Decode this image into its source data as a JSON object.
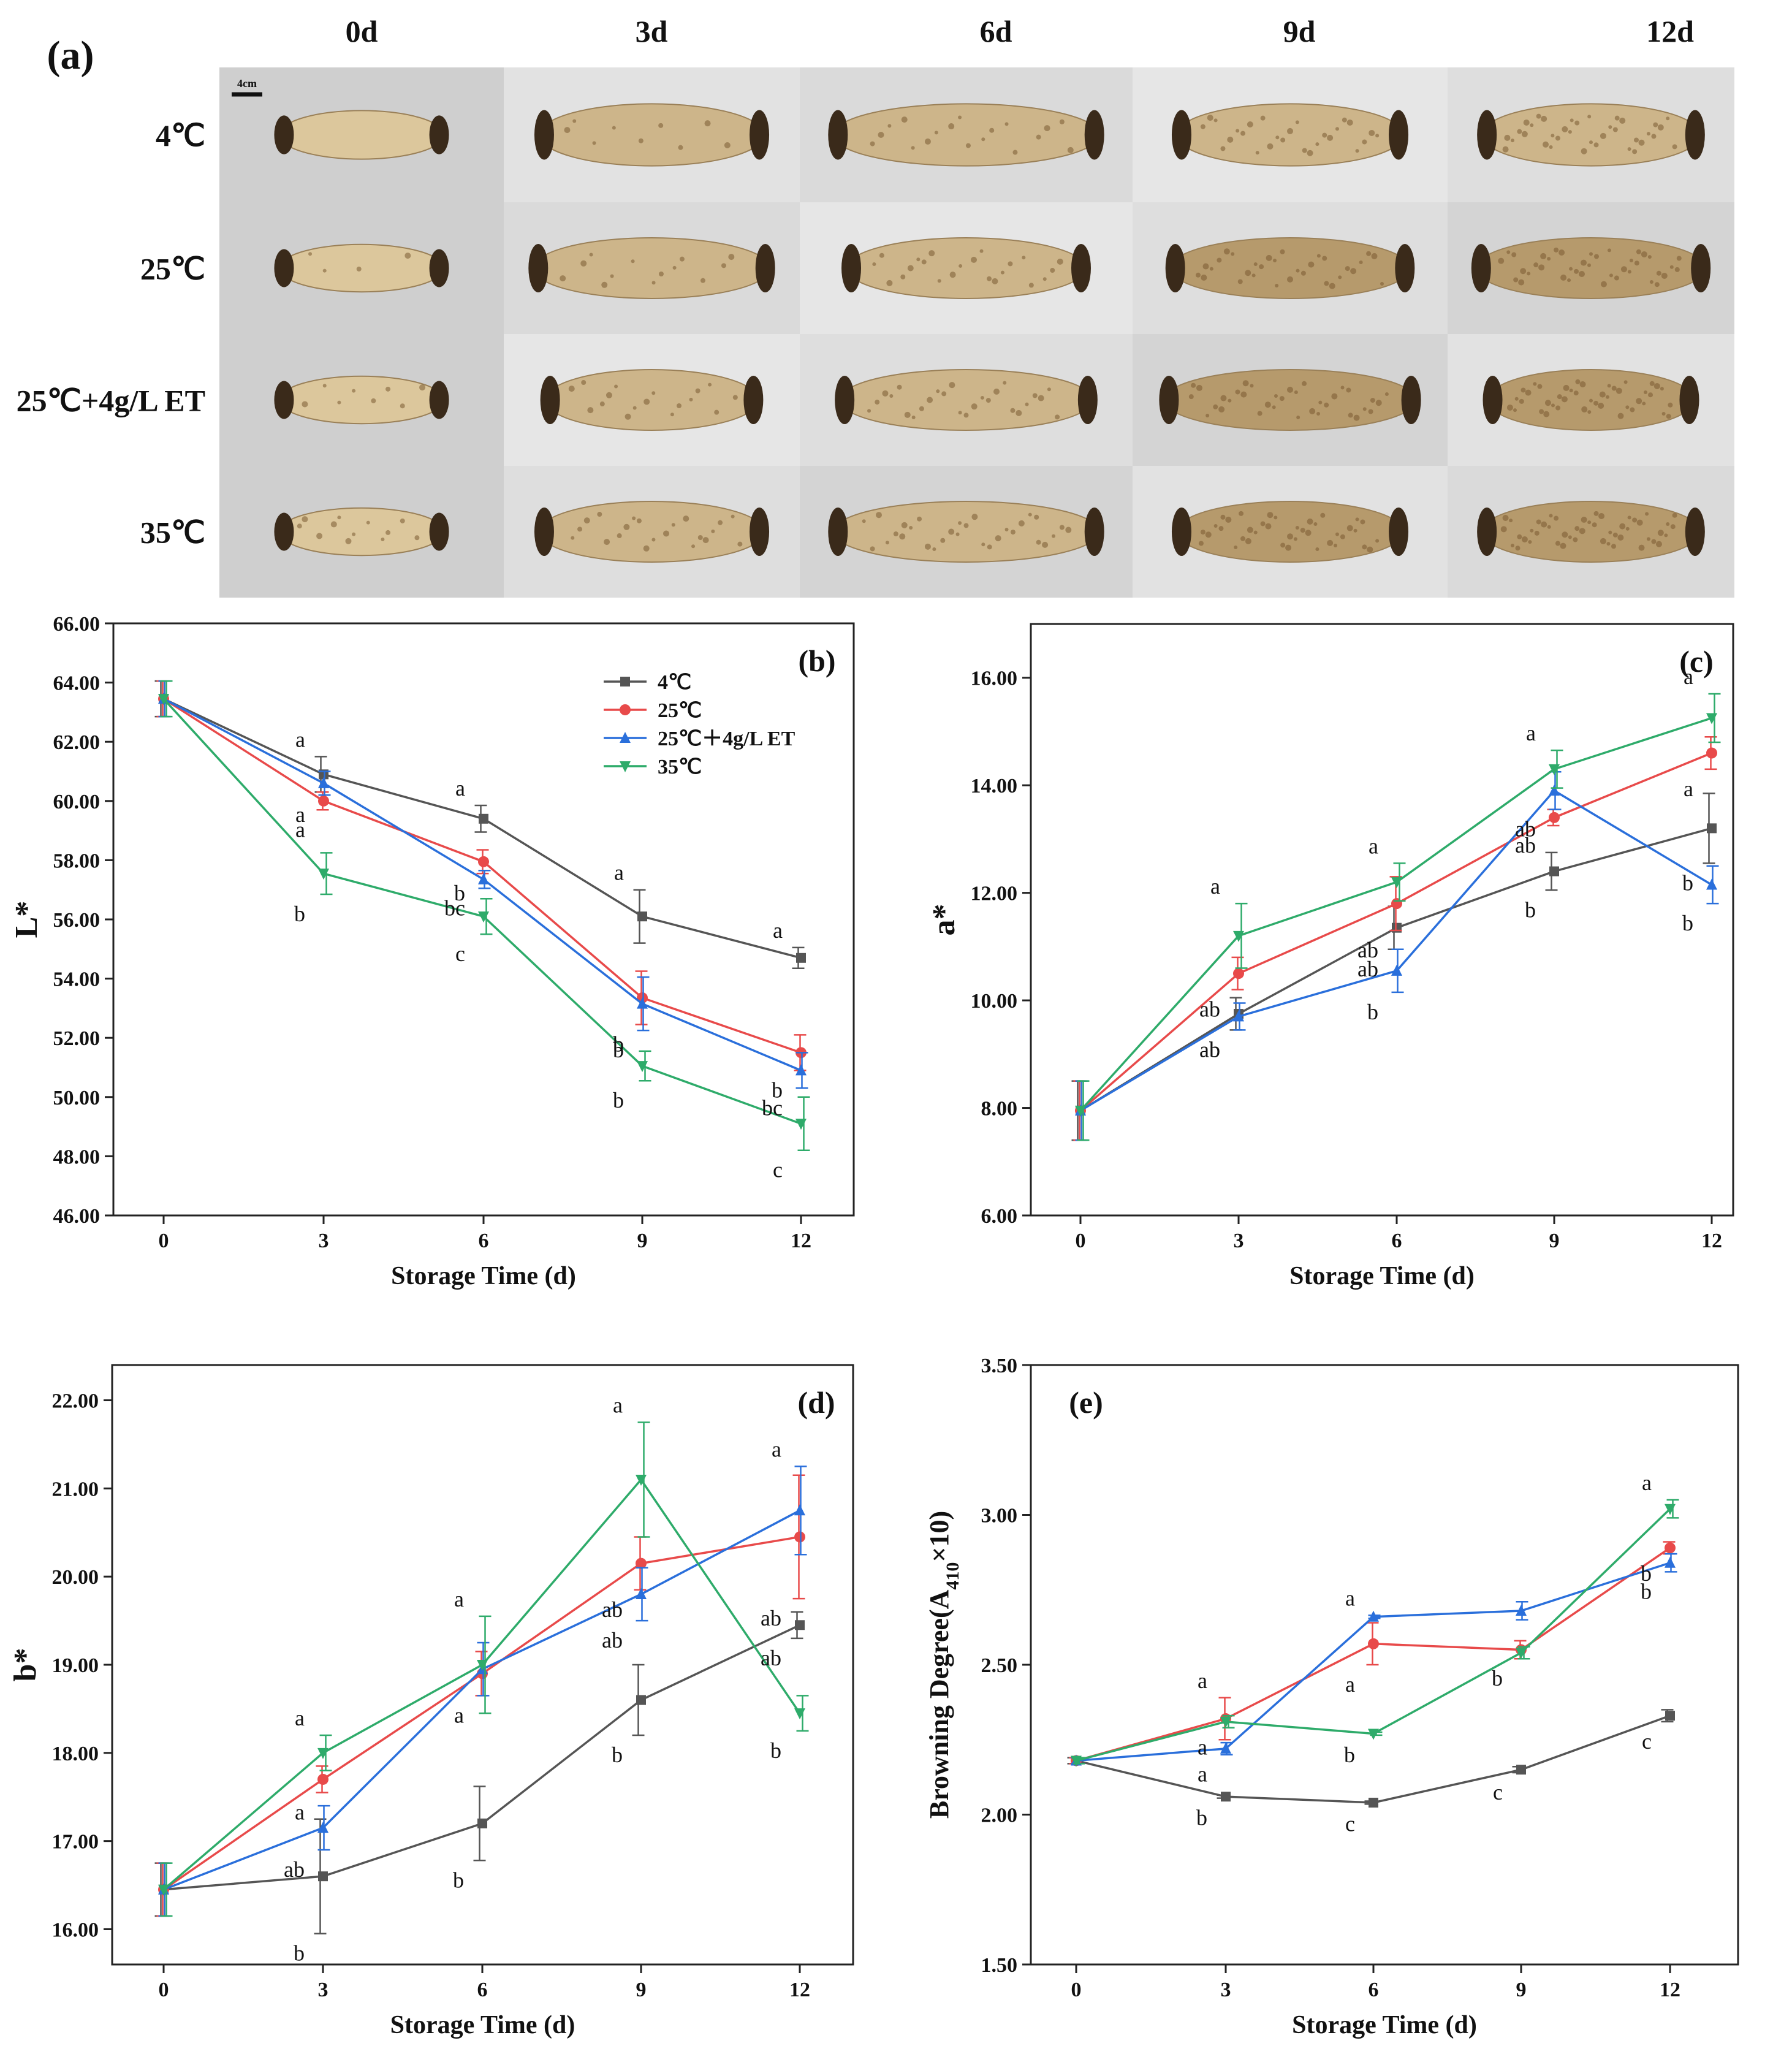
{
  "panel_a": {
    "label": "(a)",
    "days": [
      "0d",
      "3d",
      "6d",
      "9d",
      "12d"
    ],
    "treatments": [
      "4℃",
      "25℃",
      "25℃+4g/L ET",
      "35℃"
    ],
    "scale_bar": "4cm",
    "colors": {
      "background": "#dcdcdc",
      "root_body": "#d8c49a",
      "root_spots": "#7a5a32",
      "node": "#3a2a1a"
    }
  },
  "legend": {
    "items": [
      {
        "name": "4℃",
        "color": "#555555",
        "marker": "square"
      },
      {
        "name": "25℃",
        "color": "#e84a4a",
        "marker": "circle"
      },
      {
        "name": "25℃＋4g/L ET",
        "color": "#2a6fdb",
        "marker": "triangle-up"
      },
      {
        "name": "35℃",
        "color": "#2eab6a",
        "marker": "triangle-down"
      }
    ]
  },
  "chart_data": [
    {
      "type": "line",
      "panel": "(b)",
      "xlabel": "Storage Time (d)",
      "ylabel": "L*",
      "x": [
        0,
        3,
        6,
        9,
        12
      ],
      "xticks": [
        "0",
        "3",
        "6",
        "9",
        "12"
      ],
      "ylim": [
        46,
        66
      ],
      "yticks": [
        "46.00",
        "48.00",
        "50.00",
        "52.00",
        "54.00",
        "56.00",
        "58.00",
        "60.00",
        "62.00",
        "64.00",
        "66.00"
      ],
      "series": [
        {
          "name": "4℃",
          "values": [
            63.45,
            60.9,
            59.4,
            56.1,
            54.7
          ],
          "err": [
            0.6,
            0.6,
            0.45,
            0.9,
            0.35
          ],
          "letters": [
            "",
            "a",
            "a",
            "a",
            "a"
          ]
        },
        {
          "name": "25℃",
          "values": [
            63.45,
            60.0,
            57.95,
            53.35,
            51.5
          ],
          "err": [
            0.6,
            0.3,
            0.4,
            0.9,
            0.6
          ],
          "letters": [
            "",
            "a",
            "b",
            "b",
            "b"
          ]
        },
        {
          "name": "25℃＋4g/L ET",
          "values": [
            63.45,
            60.6,
            57.35,
            53.15,
            50.9
          ],
          "err": [
            0.6,
            0.4,
            0.3,
            0.9,
            0.6
          ],
          "letters": [
            "",
            "a",
            "bc",
            "b",
            "bc"
          ]
        },
        {
          "name": "35℃",
          "values": [
            63.45,
            57.55,
            56.1,
            51.05,
            49.1
          ],
          "err": [
            0.6,
            0.7,
            0.6,
            0.5,
            0.9
          ],
          "letters": [
            "",
            "b",
            "c",
            "b",
            "c"
          ]
        }
      ]
    },
    {
      "type": "line",
      "panel": "(c)",
      "xlabel": "Storage Time (d)",
      "ylabel": "a*",
      "x": [
        0,
        3,
        6,
        9,
        12
      ],
      "xticks": [
        "0",
        "3",
        "6",
        "9",
        "12"
      ],
      "ylim": [
        6,
        17
      ],
      "yticks": [
        "6.00",
        "8.00",
        "10.00",
        "12.00",
        "14.00",
        "16.00"
      ],
      "series": [
        {
          "name": "4℃",
          "values": [
            7.95,
            9.75,
            11.35,
            12.4,
            13.2
          ],
          "err": [
            0.55,
            0.3,
            0.4,
            0.35,
            0.65
          ],
          "letters": [
            "",
            "ab",
            "ab",
            "b",
            "b"
          ]
        },
        {
          "name": "25℃",
          "values": [
            7.95,
            10.5,
            11.8,
            13.4,
            14.6
          ],
          "err": [
            0.55,
            0.3,
            0.5,
            0.15,
            0.3
          ],
          "letters": [
            "",
            "ab",
            "ab",
            "ab",
            "a"
          ]
        },
        {
          "name": "25℃＋4g/L ET",
          "values": [
            7.95,
            9.7,
            10.55,
            13.9,
            12.15
          ],
          "err": [
            0.55,
            0.25,
            0.4,
            0.35,
            0.35
          ],
          "letters": [
            "",
            "b",
            "b",
            "ab",
            "b"
          ]
        },
        {
          "name": "35℃",
          "values": [
            7.95,
            11.2,
            12.2,
            14.3,
            15.25
          ],
          "err": [
            0.55,
            0.6,
            0.35,
            0.35,
            0.45
          ],
          "letters": [
            "",
            "a",
            "a",
            "a",
            "a"
          ]
        }
      ]
    },
    {
      "type": "line",
      "panel": "(d)",
      "xlabel": "Storage Time (d)",
      "ylabel": "b*",
      "x": [
        0,
        3,
        6,
        9,
        12
      ],
      "xticks": [
        "0",
        "3",
        "6",
        "9",
        "12"
      ],
      "ylim": [
        15.6,
        22.4
      ],
      "yticks": [
        "16.00",
        "17.00",
        "18.00",
        "19.00",
        "20.00",
        "21.00",
        "22.00"
      ],
      "series": [
        {
          "name": "4℃",
          "values": [
            16.45,
            16.6,
            17.2,
            18.6,
            19.45
          ],
          "err": [
            0.3,
            0.65,
            0.42,
            0.4,
            0.15
          ],
          "letters": [
            "",
            "b",
            "b",
            "b",
            "ab"
          ]
        },
        {
          "name": "25℃",
          "values": [
            16.45,
            17.7,
            18.9,
            20.15,
            20.45
          ],
          "err": [
            0.3,
            0.15,
            0.25,
            0.3,
            0.7
          ],
          "letters": [
            "",
            "a",
            "a",
            "ab",
            "ab"
          ]
        },
        {
          "name": "25℃＋4g/L ET",
          "values": [
            16.45,
            17.15,
            18.95,
            19.8,
            20.75
          ],
          "err": [
            0.3,
            0.25,
            0.3,
            0.3,
            0.5
          ],
          "letters": [
            "",
            "ab",
            "a",
            "ab",
            "a"
          ]
        },
        {
          "name": "35℃",
          "values": [
            16.45,
            18.0,
            19.0,
            21.1,
            18.45
          ],
          "err": [
            0.3,
            0.2,
            0.55,
            0.65,
            0.2
          ],
          "letters": [
            "",
            "a",
            "a",
            "a",
            "b"
          ]
        }
      ]
    },
    {
      "type": "line",
      "panel": "(e)",
      "xlabel": "Storage Time (d)",
      "ylabel": "Browning Degree(A410×10)",
      "x": [
        0,
        3,
        6,
        9,
        12
      ],
      "xticks": [
        "0",
        "3",
        "6",
        "9",
        "12"
      ],
      "ylim": [
        1.5,
        3.5
      ],
      "yticks": [
        "1.50",
        "2.00",
        "2.50",
        "3.00",
        "3.50"
      ],
      "series": [
        {
          "name": "4℃",
          "values": [
            2.18,
            2.06,
            2.04,
            2.15,
            2.33
          ],
          "err": [
            0.01,
            0.005,
            0.005,
            0.01,
            0.02
          ],
          "letters": [
            "",
            "b",
            "c",
            "c",
            "c"
          ]
        },
        {
          "name": "25℃",
          "values": [
            2.18,
            2.32,
            2.57,
            2.55,
            2.89
          ],
          "err": [
            0.01,
            0.07,
            0.07,
            0.03,
            0.02
          ],
          "letters": [
            "",
            "a",
            "a",
            "b",
            "b"
          ]
        },
        {
          "name": "25℃＋4g/L ET",
          "values": [
            2.18,
            2.22,
            2.66,
            2.68,
            2.84
          ],
          "err": [
            0.01,
            0.02,
            0.005,
            0.03,
            0.03
          ],
          "letters": [
            "",
            "a",
            "a",
            "",
            "b"
          ]
        },
        {
          "name": "35℃",
          "values": [
            2.18,
            2.31,
            2.27,
            2.54,
            3.02
          ],
          "err": [
            0.01,
            0.02,
            0.005,
            0.02,
            0.03
          ],
          "letters": [
            "",
            "a",
            "b",
            "",
            "a"
          ]
        }
      ]
    }
  ]
}
